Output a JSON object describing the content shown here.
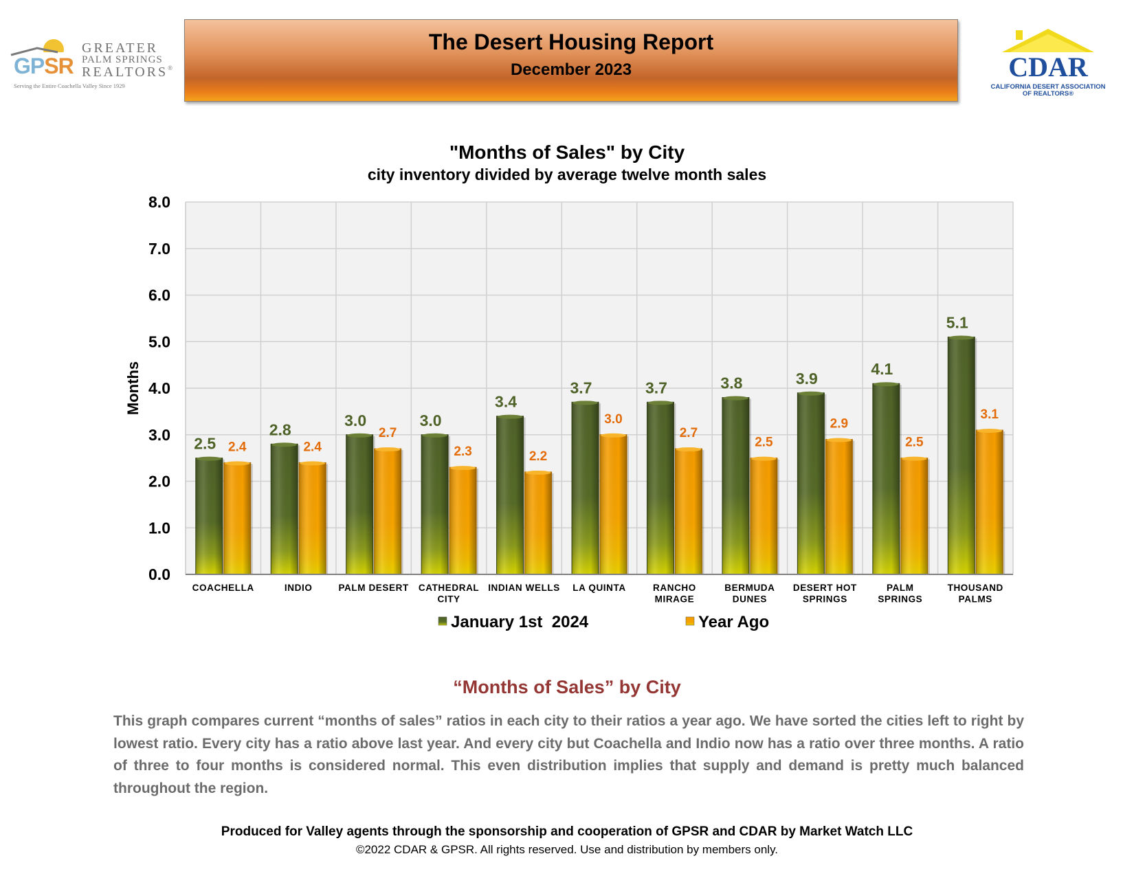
{
  "header": {
    "gpsr_logo": {
      "letters_1": "GP",
      "letters_2": "SR",
      "line1": "GREATER",
      "line2": "PALM SPRINGS",
      "line3": "REALTORS",
      "registered": "®",
      "tagline": "Serving the Entire Coachella Valley Since 1929"
    },
    "title": "The Desert Housing Report",
    "subtitle": "December 2023",
    "cdar_logo": {
      "word": "CDAR",
      "sub1": "CALIFORNIA DESERT ASSOCIATION",
      "sub2": "OF REALTORS®"
    }
  },
  "chart_data": {
    "type": "bar",
    "title": "\"Months of Sales\" by City",
    "subtitle": "city inventory divided by average twelve month sales",
    "xlabel": "",
    "ylabel": "Months",
    "ylim": [
      0,
      8
    ],
    "yticks": [
      "0.0",
      "1.0",
      "2.0",
      "3.0",
      "4.0",
      "5.0",
      "6.0",
      "7.0",
      "8.0"
    ],
    "grid": true,
    "legend_position": "bottom",
    "categories": [
      [
        "COACHELLA"
      ],
      [
        "INDIO"
      ],
      [
        "PALM DESERT"
      ],
      [
        "CATHEDRAL",
        "CITY"
      ],
      [
        "INDIAN WELLS"
      ],
      [
        "LA QUINTA"
      ],
      [
        "RANCHO",
        "MIRAGE"
      ],
      [
        "BERMUDA",
        "DUNES"
      ],
      [
        "DESERT HOT",
        "SPRINGS"
      ],
      [
        "PALM",
        "SPRINGS"
      ],
      [
        "THOUSAND",
        "PALMS"
      ]
    ],
    "series": [
      {
        "name": "January 1st  2024",
        "color": "#4f6228",
        "label_color": "#4f6228",
        "values": [
          2.5,
          2.8,
          3.0,
          3.0,
          3.4,
          3.7,
          3.7,
          3.8,
          3.9,
          4.1,
          5.1
        ],
        "labels": [
          "2.5",
          "2.8",
          "3.0",
          "3.0",
          "3.4",
          "3.7",
          "3.7",
          "3.8",
          "3.9",
          "4.1",
          "5.1"
        ]
      },
      {
        "name": "Year Ago",
        "color": "#f59b00",
        "label_color": "#e36c09",
        "values": [
          2.4,
          2.4,
          2.7,
          2.3,
          2.2,
          3.0,
          2.7,
          2.5,
          2.9,
          2.5,
          3.1
        ],
        "labels": [
          "2.4",
          "2.4",
          "2.7",
          "2.3",
          "2.2",
          "3.0",
          "2.7",
          "2.5",
          "2.9",
          "2.5",
          "3.1"
        ]
      }
    ]
  },
  "description": {
    "heading": "“Months of Sales” by City",
    "body": "This graph compares current “months of sales” ratios in each city to their ratios a year ago. We have sorted the cities left to right by lowest ratio. Every city has a ratio above last year. And every city but Coachella and Indio now has a ratio over three months. A ratio of three to four months is considered normal. This even distribution implies that supply and demand is pretty much balanced throughout the region."
  },
  "footer": {
    "main": "Produced for Valley agents through the sponsorship and cooperation of GPSR and CDAR by Market Watch LLC",
    "copyright": "©2022 CDAR & GPSR.  All rights reserved.  Use and distribution by members only."
  }
}
